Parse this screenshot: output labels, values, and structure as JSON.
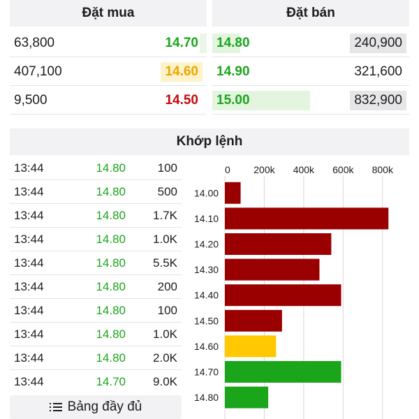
{
  "order_book": {
    "buy_title": "Đặt mua",
    "sell_title": "Đặt bán",
    "buy": [
      {
        "volume": "63,800",
        "price": "14.70",
        "color": "green",
        "bar_fraction": 0.0
      },
      {
        "volume": "407,100",
        "price": "14.60",
        "color": "yellow",
        "bar_fraction": 0.0
      },
      {
        "volume": "9,500",
        "price": "14.50",
        "color": "red",
        "bar_fraction": 0.0
      }
    ],
    "sell": [
      {
        "price": "14.80",
        "volume": "240,900",
        "color": "green",
        "bar_fraction": 0.29
      },
      {
        "price": "14.90",
        "volume": "321,600",
        "color": "green",
        "bar_fraction": 0.0
      },
      {
        "price": "15.00",
        "volume": "832,900",
        "color": "green",
        "bar_fraction": 1.0
      }
    ]
  },
  "matched": {
    "title": "Khớp lệnh",
    "trades": [
      {
        "time": "13:44",
        "price": "14.80",
        "volume": "100"
      },
      {
        "time": "13:44",
        "price": "14.80",
        "volume": "500"
      },
      {
        "time": "13:44",
        "price": "14.80",
        "volume": "1.7K"
      },
      {
        "time": "13:44",
        "price": "14.80",
        "volume": "1.0K"
      },
      {
        "time": "13:44",
        "price": "14.80",
        "volume": "5.5K"
      },
      {
        "time": "13:44",
        "price": "14.80",
        "volume": "200"
      },
      {
        "time": "13:44",
        "price": "14.80",
        "volume": "100"
      },
      {
        "time": "13:44",
        "price": "14.80",
        "volume": "1.0K"
      },
      {
        "time": "13:44",
        "price": "14.80",
        "volume": "2.0K"
      },
      {
        "time": "13:44",
        "price": "14.70",
        "volume": "9.0K"
      }
    ],
    "full_button_label": "Bảng đầy đủ",
    "full_button_icon": "list-icon"
  },
  "colors": {
    "green": "#1aa51a",
    "yellow": "#e8a800",
    "red": "#c20a0a",
    "bar_red": "#9b0000",
    "bar_yellow": "#ffc800",
    "bar_green": "#1aa51a",
    "buy_highlight_green": "#eaf7e6",
    "buy_highlight_yellow": "#fdf2c9",
    "sell_highlight_green": "#e3f5df"
  },
  "chart_data": {
    "type": "bar",
    "orientation": "horizontal",
    "categories": [
      "14.00",
      "14.10",
      "14.20",
      "14.30",
      "14.40",
      "14.50",
      "14.60",
      "14.70",
      "14.80"
    ],
    "values": [
      80000,
      830000,
      540000,
      480000,
      590000,
      290000,
      260000,
      590000,
      220000
    ],
    "bar_colors": [
      "red",
      "red",
      "red",
      "red",
      "red",
      "red",
      "yellow",
      "green",
      "green"
    ],
    "xlim": [
      0,
      900000
    ],
    "xticks": [
      "0",
      "200k",
      "400k",
      "600k",
      "800k"
    ],
    "xtick_values": [
      0,
      200000,
      400000,
      600000,
      800000
    ],
    "axis_position": "top",
    "grid": true
  }
}
